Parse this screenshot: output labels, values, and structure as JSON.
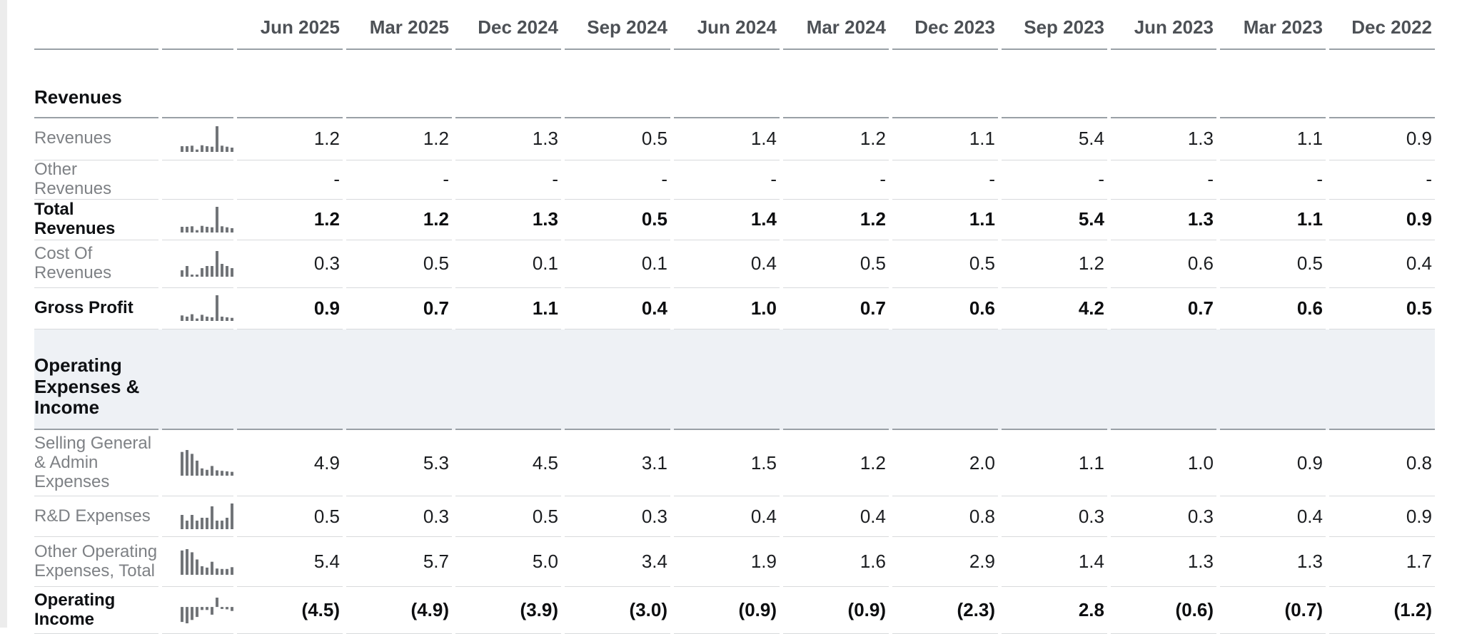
{
  "columns": [
    "Jun 2025",
    "Mar 2025",
    "Dec 2024",
    "Sep 2024",
    "Jun 2024",
    "Mar 2024",
    "Dec 2023",
    "Sep 2023",
    "Jun 2023",
    "Mar 2023",
    "Dec 2022"
  ],
  "sections": [
    {
      "title": "Revenues",
      "highlighted": false,
      "rows": [
        {
          "label": "Revenues",
          "bold": false,
          "spark": [
            1.2,
            1.2,
            1.3,
            0.5,
            1.4,
            1.2,
            1.1,
            5.4,
            1.3,
            1.1,
            0.9
          ],
          "values": [
            "1.2",
            "1.2",
            "1.3",
            "0.5",
            "1.4",
            "1.2",
            "1.1",
            "5.4",
            "1.3",
            "1.1",
            "0.9"
          ]
        },
        {
          "label": "Other Revenues",
          "bold": false,
          "spark": null,
          "values": [
            "-",
            "-",
            "-",
            "-",
            "-",
            "-",
            "-",
            "-",
            "-",
            "-",
            "-"
          ]
        },
        {
          "label": "Total Revenues",
          "bold": true,
          "spark": [
            1.2,
            1.2,
            1.3,
            0.5,
            1.4,
            1.2,
            1.1,
            5.4,
            1.3,
            1.1,
            0.9
          ],
          "values": [
            "1.2",
            "1.2",
            "1.3",
            "0.5",
            "1.4",
            "1.2",
            "1.1",
            "5.4",
            "1.3",
            "1.1",
            "0.9"
          ]
        },
        {
          "label": "Cost Of Revenues",
          "bold": false,
          "spark": [
            0.3,
            0.5,
            0.1,
            0.1,
            0.4,
            0.5,
            0.5,
            1.2,
            0.6,
            0.5,
            0.4
          ],
          "values": [
            "0.3",
            "0.5",
            "0.1",
            "0.1",
            "0.4",
            "0.5",
            "0.5",
            "1.2",
            "0.6",
            "0.5",
            "0.4"
          ]
        },
        {
          "label": "Gross Profit",
          "bold": true,
          "spark": [
            0.9,
            0.7,
            1.1,
            0.4,
            1.0,
            0.7,
            0.6,
            4.2,
            0.7,
            0.6,
            0.5
          ],
          "values": [
            "0.9",
            "0.7",
            "1.1",
            "0.4",
            "1.0",
            "0.7",
            "0.6",
            "4.2",
            "0.7",
            "0.6",
            "0.5"
          ]
        }
      ]
    },
    {
      "title": "Operating Expenses & Income",
      "highlighted": true,
      "rows": [
        {
          "label": "Selling General & Admin Expenses",
          "bold": false,
          "spark": [
            4.9,
            5.3,
            4.5,
            3.1,
            1.5,
            1.2,
            2.0,
            1.1,
            1.0,
            0.9,
            0.8
          ],
          "values": [
            "4.9",
            "5.3",
            "4.5",
            "3.1",
            "1.5",
            "1.2",
            "2.0",
            "1.1",
            "1.0",
            "0.9",
            "0.8"
          ]
        },
        {
          "label": "R&D Expenses",
          "bold": false,
          "spark": [
            0.5,
            0.3,
            0.5,
            0.3,
            0.4,
            0.4,
            0.8,
            0.3,
            0.3,
            0.4,
            0.9
          ],
          "values": [
            "0.5",
            "0.3",
            "0.5",
            "0.3",
            "0.4",
            "0.4",
            "0.8",
            "0.3",
            "0.3",
            "0.4",
            "0.9"
          ]
        },
        {
          "label": "Other Operating Expenses, Total",
          "bold": false,
          "spark": [
            5.4,
            5.7,
            5.0,
            3.4,
            1.9,
            1.6,
            2.9,
            1.4,
            1.3,
            1.3,
            1.7
          ],
          "values": [
            "5.4",
            "5.7",
            "5.0",
            "3.4",
            "1.9",
            "1.6",
            "2.9",
            "1.4",
            "1.3",
            "1.3",
            "1.7"
          ]
        },
        {
          "label": "Operating Income",
          "bold": true,
          "spark": [
            -4.5,
            -4.9,
            -3.9,
            -3.0,
            -0.9,
            -0.9,
            -2.3,
            2.8,
            -0.6,
            -0.7,
            -1.2
          ],
          "values": [
            "(4.5)",
            "(4.9)",
            "(3.9)",
            "(3.0)",
            "(0.9)",
            "(0.9)",
            "(2.3)",
            "2.8",
            "(0.6)",
            "(0.7)",
            "(1.2)"
          ]
        }
      ]
    }
  ],
  "colors": {
    "strong_border": "#99a0a6",
    "light_border": "#d8dadc",
    "section_background": "#eef1f5",
    "sparkline_bar": "#717478",
    "header_text": "#4d5156",
    "muted_label": "#7e8185",
    "value_text": "#1b1d20"
  }
}
